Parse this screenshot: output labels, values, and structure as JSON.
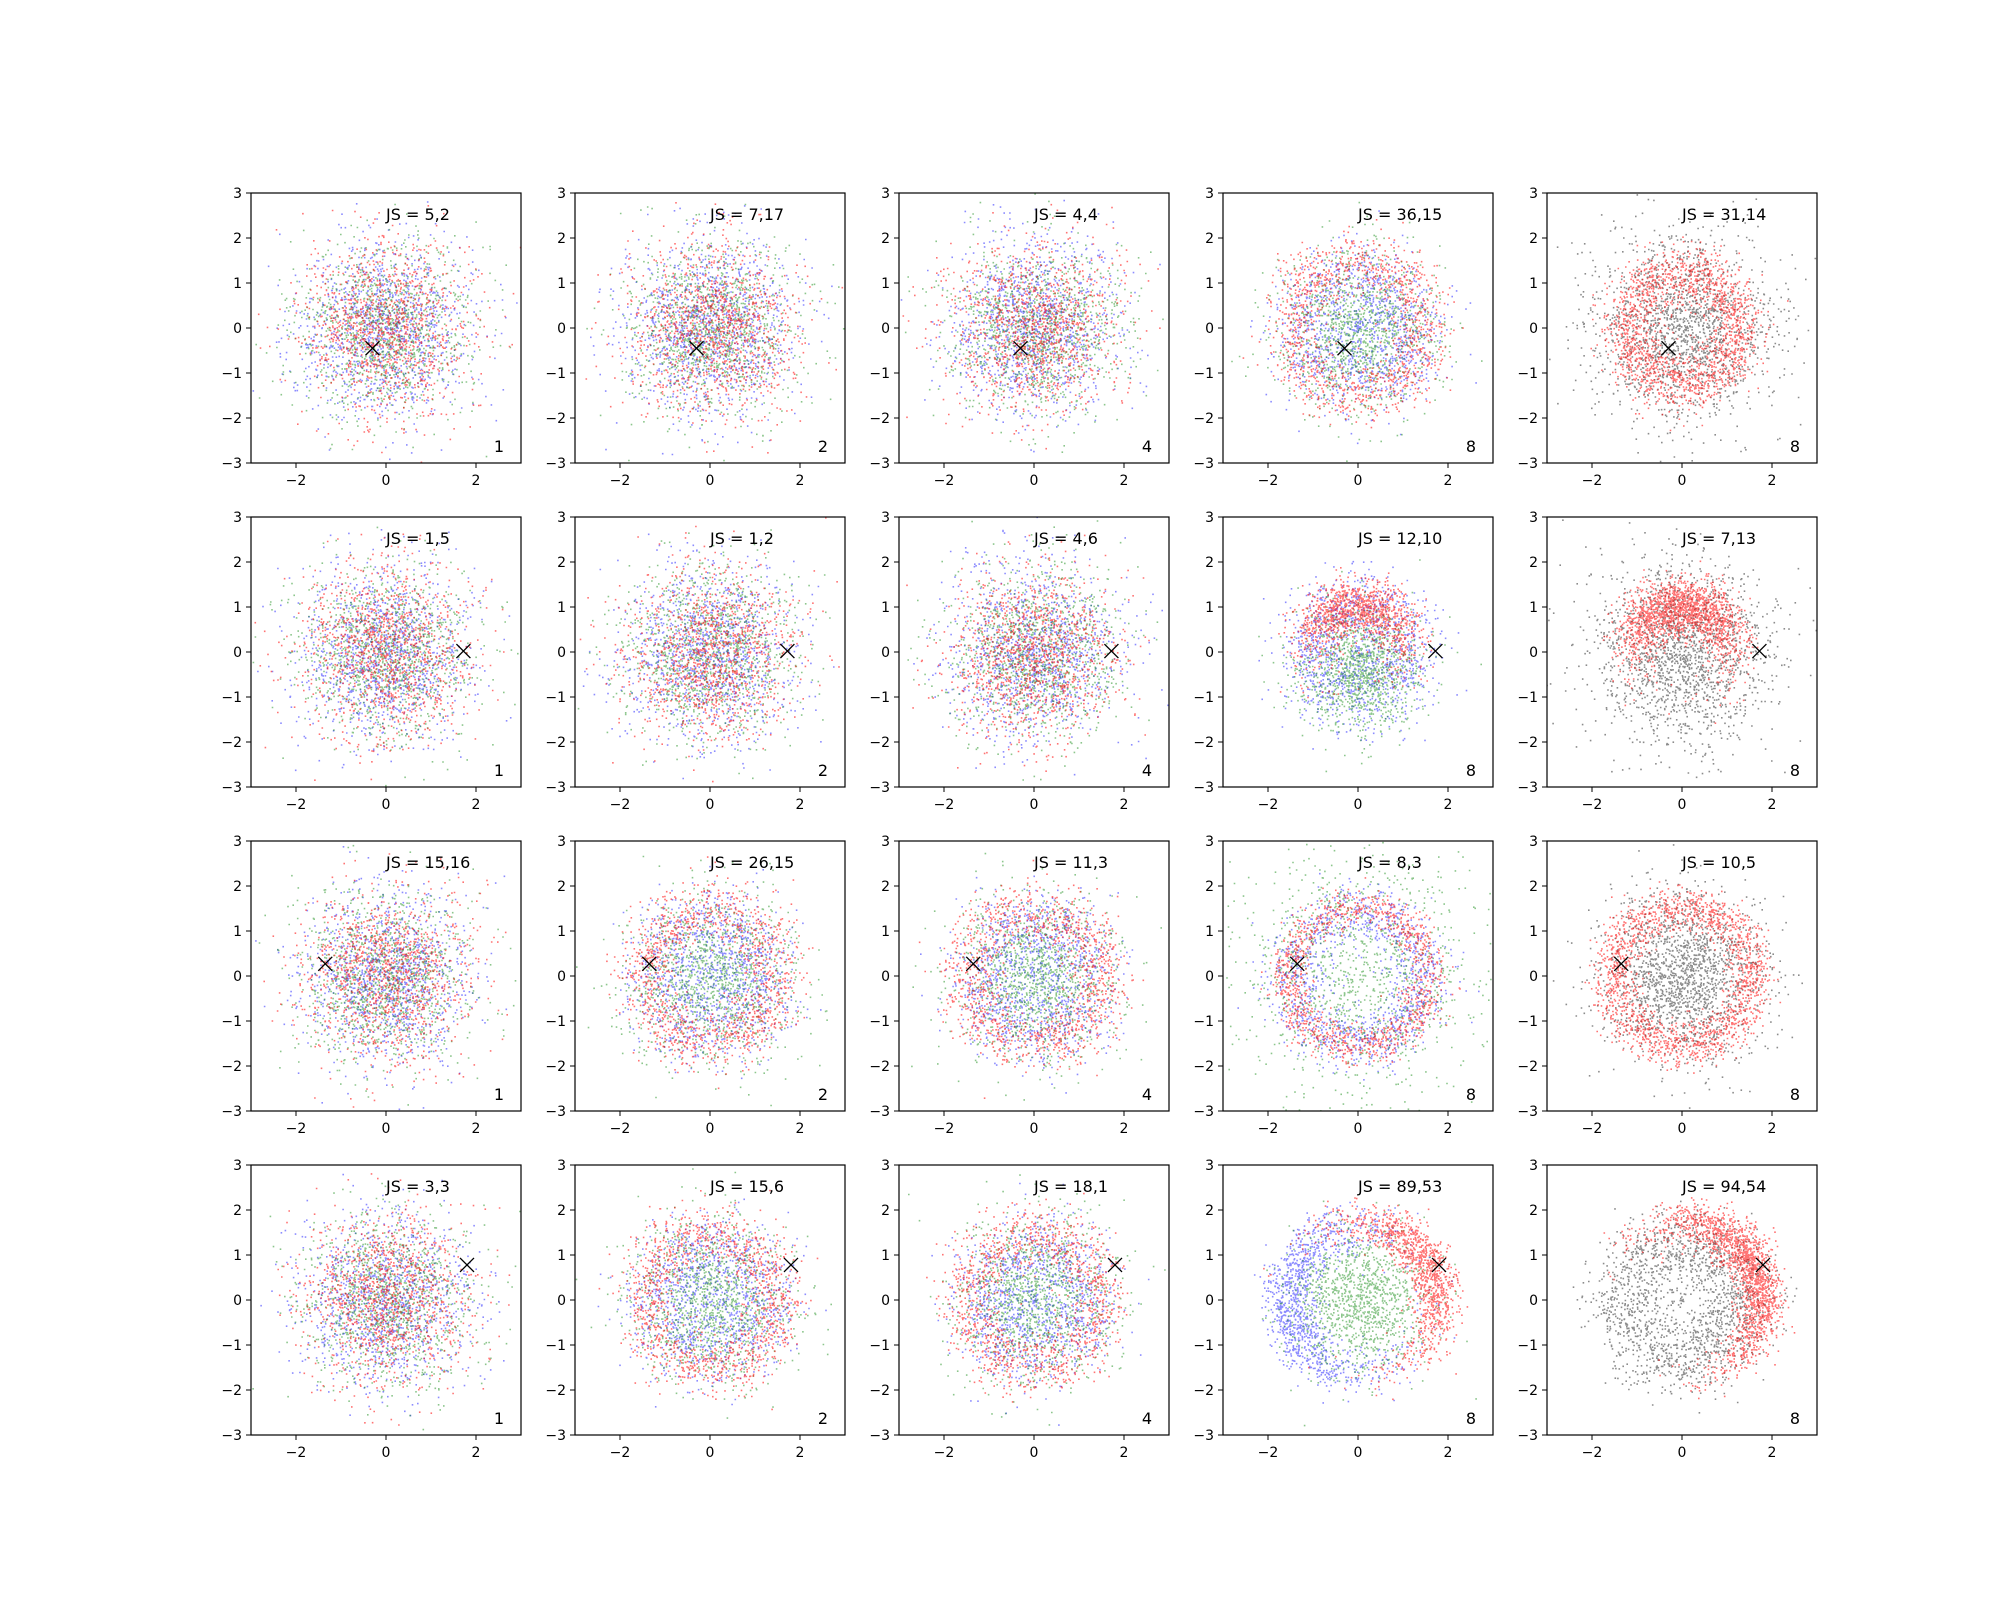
{
  "chart_data": {
    "type": "scatter",
    "layout": {
      "rows": 4,
      "cols": 5
    },
    "axes": {
      "xlim": [
        -3,
        3
      ],
      "ylim": [
        -3,
        3
      ],
      "xticks": [
        -2,
        0,
        2
      ],
      "yticks": [
        -3,
        -2,
        -1,
        0,
        1,
        2,
        3
      ],
      "grid": false,
      "legend": "none"
    },
    "colors": {
      "red": "#ff0000",
      "green": "#008000",
      "blue": "#0000ff",
      "black": "#000000",
      "marker": "#000000"
    },
    "rows": [
      {
        "marker": [
          -0.3,
          -0.45
        ]
      },
      {
        "marker": [
          1.72,
          0.02
        ]
      },
      {
        "marker": [
          -1.35,
          0.27
        ]
      },
      {
        "marker": [
          1.8,
          0.78
        ]
      }
    ],
    "panels": [
      {
        "row": 0,
        "col": 0,
        "js": "JS = 5,2",
        "k": "1",
        "series": [
          "red",
          "green",
          "blue"
        ],
        "shape": "blob"
      },
      {
        "row": 0,
        "col": 1,
        "js": "JS = 7,17",
        "k": "2",
        "series": [
          "red",
          "green",
          "blue"
        ],
        "shape": "blob"
      },
      {
        "row": 0,
        "col": 2,
        "js": "JS = 4,4",
        "k": "4",
        "series": [
          "red",
          "green",
          "blue"
        ],
        "shape": "blob"
      },
      {
        "row": 0,
        "col": 3,
        "js": "JS = 36,15",
        "k": "8",
        "series": [
          "red",
          "green",
          "blue"
        ],
        "shape": "ring"
      },
      {
        "row": 0,
        "col": 4,
        "js": "JS = 31,14",
        "k": "8",
        "series": [
          "red",
          "black"
        ],
        "shape": "ring"
      },
      {
        "row": 1,
        "col": 0,
        "js": "JS = 1,5",
        "k": "1",
        "series": [
          "red",
          "green",
          "blue"
        ],
        "shape": "blob"
      },
      {
        "row": 1,
        "col": 1,
        "js": "JS = 1,2",
        "k": "2",
        "series": [
          "red",
          "green",
          "blue"
        ],
        "shape": "blob"
      },
      {
        "row": 1,
        "col": 2,
        "js": "JS = 4,6",
        "k": "4",
        "series": [
          "red",
          "green",
          "blue"
        ],
        "shape": "blob"
      },
      {
        "row": 1,
        "col": 3,
        "js": "JS = 12,10",
        "k": "8",
        "series": [
          "red",
          "green",
          "blue"
        ],
        "shape": "crescent-top"
      },
      {
        "row": 1,
        "col": 4,
        "js": "JS = 7,13",
        "k": "8",
        "series": [
          "red",
          "black"
        ],
        "shape": "crescent-top"
      },
      {
        "row": 2,
        "col": 0,
        "js": "JS = 15,16",
        "k": "1",
        "series": [
          "red",
          "green",
          "blue"
        ],
        "shape": "blob"
      },
      {
        "row": 2,
        "col": 1,
        "js": "JS = 26,15",
        "k": "2",
        "series": [
          "red",
          "green",
          "blue"
        ],
        "shape": "ring"
      },
      {
        "row": 2,
        "col": 2,
        "js": "JS = 11,3",
        "k": "4",
        "series": [
          "red",
          "green",
          "blue"
        ],
        "shape": "ring"
      },
      {
        "row": 2,
        "col": 3,
        "js": "JS = 8,3",
        "k": "8",
        "series": [
          "red",
          "green",
          "blue"
        ],
        "shape": "ring-wide"
      },
      {
        "row": 2,
        "col": 4,
        "js": "JS = 10,5",
        "k": "8",
        "series": [
          "red",
          "black"
        ],
        "shape": "ring-wide"
      },
      {
        "row": 3,
        "col": 0,
        "js": "JS = 3,3",
        "k": "1",
        "series": [
          "red",
          "green",
          "blue"
        ],
        "shape": "blob"
      },
      {
        "row": 3,
        "col": 1,
        "js": "JS = 15,6",
        "k": "2",
        "series": [
          "red",
          "green",
          "blue"
        ],
        "shape": "ring"
      },
      {
        "row": 3,
        "col": 2,
        "js": "JS = 18,1",
        "k": "4",
        "series": [
          "red",
          "green",
          "blue"
        ],
        "shape": "ring"
      },
      {
        "row": 3,
        "col": 3,
        "js": "JS = 89,53",
        "k": "8",
        "series": [
          "red",
          "green",
          "blue"
        ],
        "shape": "crescent-right"
      },
      {
        "row": 3,
        "col": 4,
        "js": "JS = 94,54",
        "k": "8",
        "series": [
          "red",
          "black"
        ],
        "shape": "crescent-right"
      }
    ]
  }
}
